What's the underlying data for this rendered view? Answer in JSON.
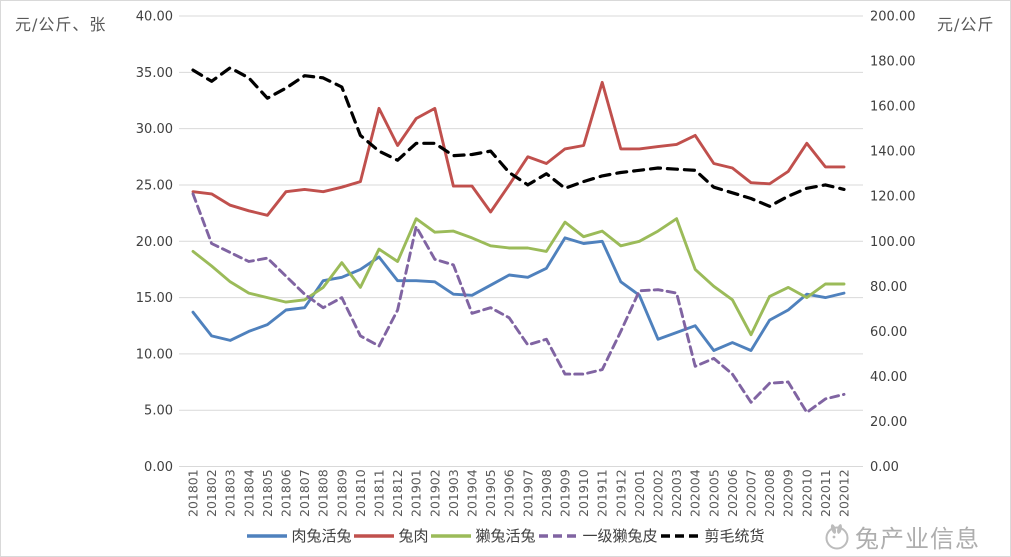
{
  "chart_data": {
    "type": "line",
    "title": "",
    "left_axis": {
      "title": "元/公斤、张",
      "min": 0,
      "max": 40,
      "step": 5,
      "tick_labels": [
        "40.00",
        "35.00",
        "30.00",
        "25.00",
        "20.00",
        "15.00",
        "10.00",
        "5.00",
        "0.00"
      ]
    },
    "right_axis": {
      "title": "元/公斤",
      "min": 0,
      "max": 200,
      "step": 20,
      "tick_labels": [
        "200.00",
        "180.00",
        "160.00",
        "140.00",
        "120.00",
        "100.00",
        "80.00",
        "60.00",
        "40.00",
        "20.00",
        "0.00"
      ]
    },
    "grid": true,
    "legend_position": "bottom",
    "categories": [
      "201801",
      "201802",
      "201803",
      "201804",
      "201805",
      "201806",
      "201807",
      "201808",
      "201809",
      "201810",
      "201811",
      "201812",
      "201901",
      "201902",
      "201903",
      "201904",
      "201905",
      "201906",
      "201907",
      "201908",
      "201909",
      "201910",
      "201911",
      "201912",
      "202001",
      "202002",
      "202003",
      "202004",
      "202005",
      "202006",
      "202007",
      "202008",
      "202009",
      "202010",
      "202011",
      "202012"
    ],
    "series": [
      {
        "name": "肉兔活兔",
        "color": "#4F81BD",
        "axis": "left",
        "style": "solid",
        "values": [
          13.7,
          11.6,
          11.2,
          12.0,
          12.6,
          13.9,
          14.1,
          16.5,
          16.8,
          17.5,
          18.6,
          16.5,
          16.5,
          16.4,
          15.3,
          15.2,
          16.1,
          17.0,
          16.8,
          17.6,
          20.3,
          19.8,
          20.0,
          16.4,
          15.2,
          11.3,
          11.9,
          12.5,
          10.3,
          11.0,
          10.3,
          13.0,
          13.9,
          15.3,
          15.0,
          15.4
        ]
      },
      {
        "name": "兔肉",
        "color": "#C0504D",
        "axis": "left",
        "style": "solid",
        "values": [
          24.4,
          24.2,
          23.2,
          22.7,
          22.3,
          24.4,
          24.6,
          24.4,
          24.8,
          25.3,
          31.8,
          28.5,
          30.9,
          31.8,
          24.9,
          24.9,
          22.6,
          25.0,
          27.5,
          26.9,
          28.2,
          28.5,
          34.1,
          28.2,
          28.2,
          28.4,
          28.6,
          29.4,
          26.9,
          26.5,
          25.2,
          25.1,
          26.2,
          28.7,
          26.6,
          26.6
        ]
      },
      {
        "name": "獭兔活兔",
        "color": "#9BBB59",
        "axis": "left",
        "style": "solid",
        "values": [
          19.1,
          17.8,
          16.4,
          15.4,
          15.0,
          14.6,
          14.8,
          15.9,
          18.1,
          15.9,
          19.3,
          18.2,
          22.0,
          20.8,
          20.9,
          20.3,
          19.6,
          19.4,
          19.4,
          19.1,
          21.7,
          20.4,
          20.9,
          19.6,
          20.0,
          20.9,
          22.0,
          17.5,
          16.0,
          14.8,
          11.7,
          15.1,
          15.9,
          15.0,
          16.2,
          16.2
        ]
      },
      {
        "name": "一级獭兔皮",
        "color": "#8064A2",
        "axis": "left",
        "style": "dashed",
        "values": [
          24.2,
          19.8,
          19.0,
          18.2,
          18.5,
          16.9,
          15.3,
          14.1,
          15.0,
          11.6,
          10.7,
          13.9,
          21.3,
          18.4,
          17.9,
          13.6,
          14.1,
          13.2,
          10.8,
          11.3,
          8.2,
          8.2,
          8.6,
          12.0,
          15.6,
          15.7,
          15.4,
          8.9,
          9.6,
          8.2,
          5.7,
          7.4,
          7.5,
          4.8,
          6.0,
          6.4
        ]
      },
      {
        "name": "剪毛统货",
        "color": "#000000",
        "axis": "right",
        "style": "dashed",
        "values": [
          176,
          171,
          177,
          172.5,
          163.5,
          168,
          173.5,
          172.5,
          168.5,
          147,
          140,
          136,
          143.5,
          143.5,
          138,
          138.5,
          140,
          130.5,
          125,
          130,
          123.5,
          126.5,
          129,
          130.5,
          131.5,
          132.5,
          132,
          131.5,
          124,
          121.5,
          119,
          115.5,
          120,
          123.5,
          125,
          123
        ]
      }
    ],
    "watermark": "兔产业信息"
  }
}
